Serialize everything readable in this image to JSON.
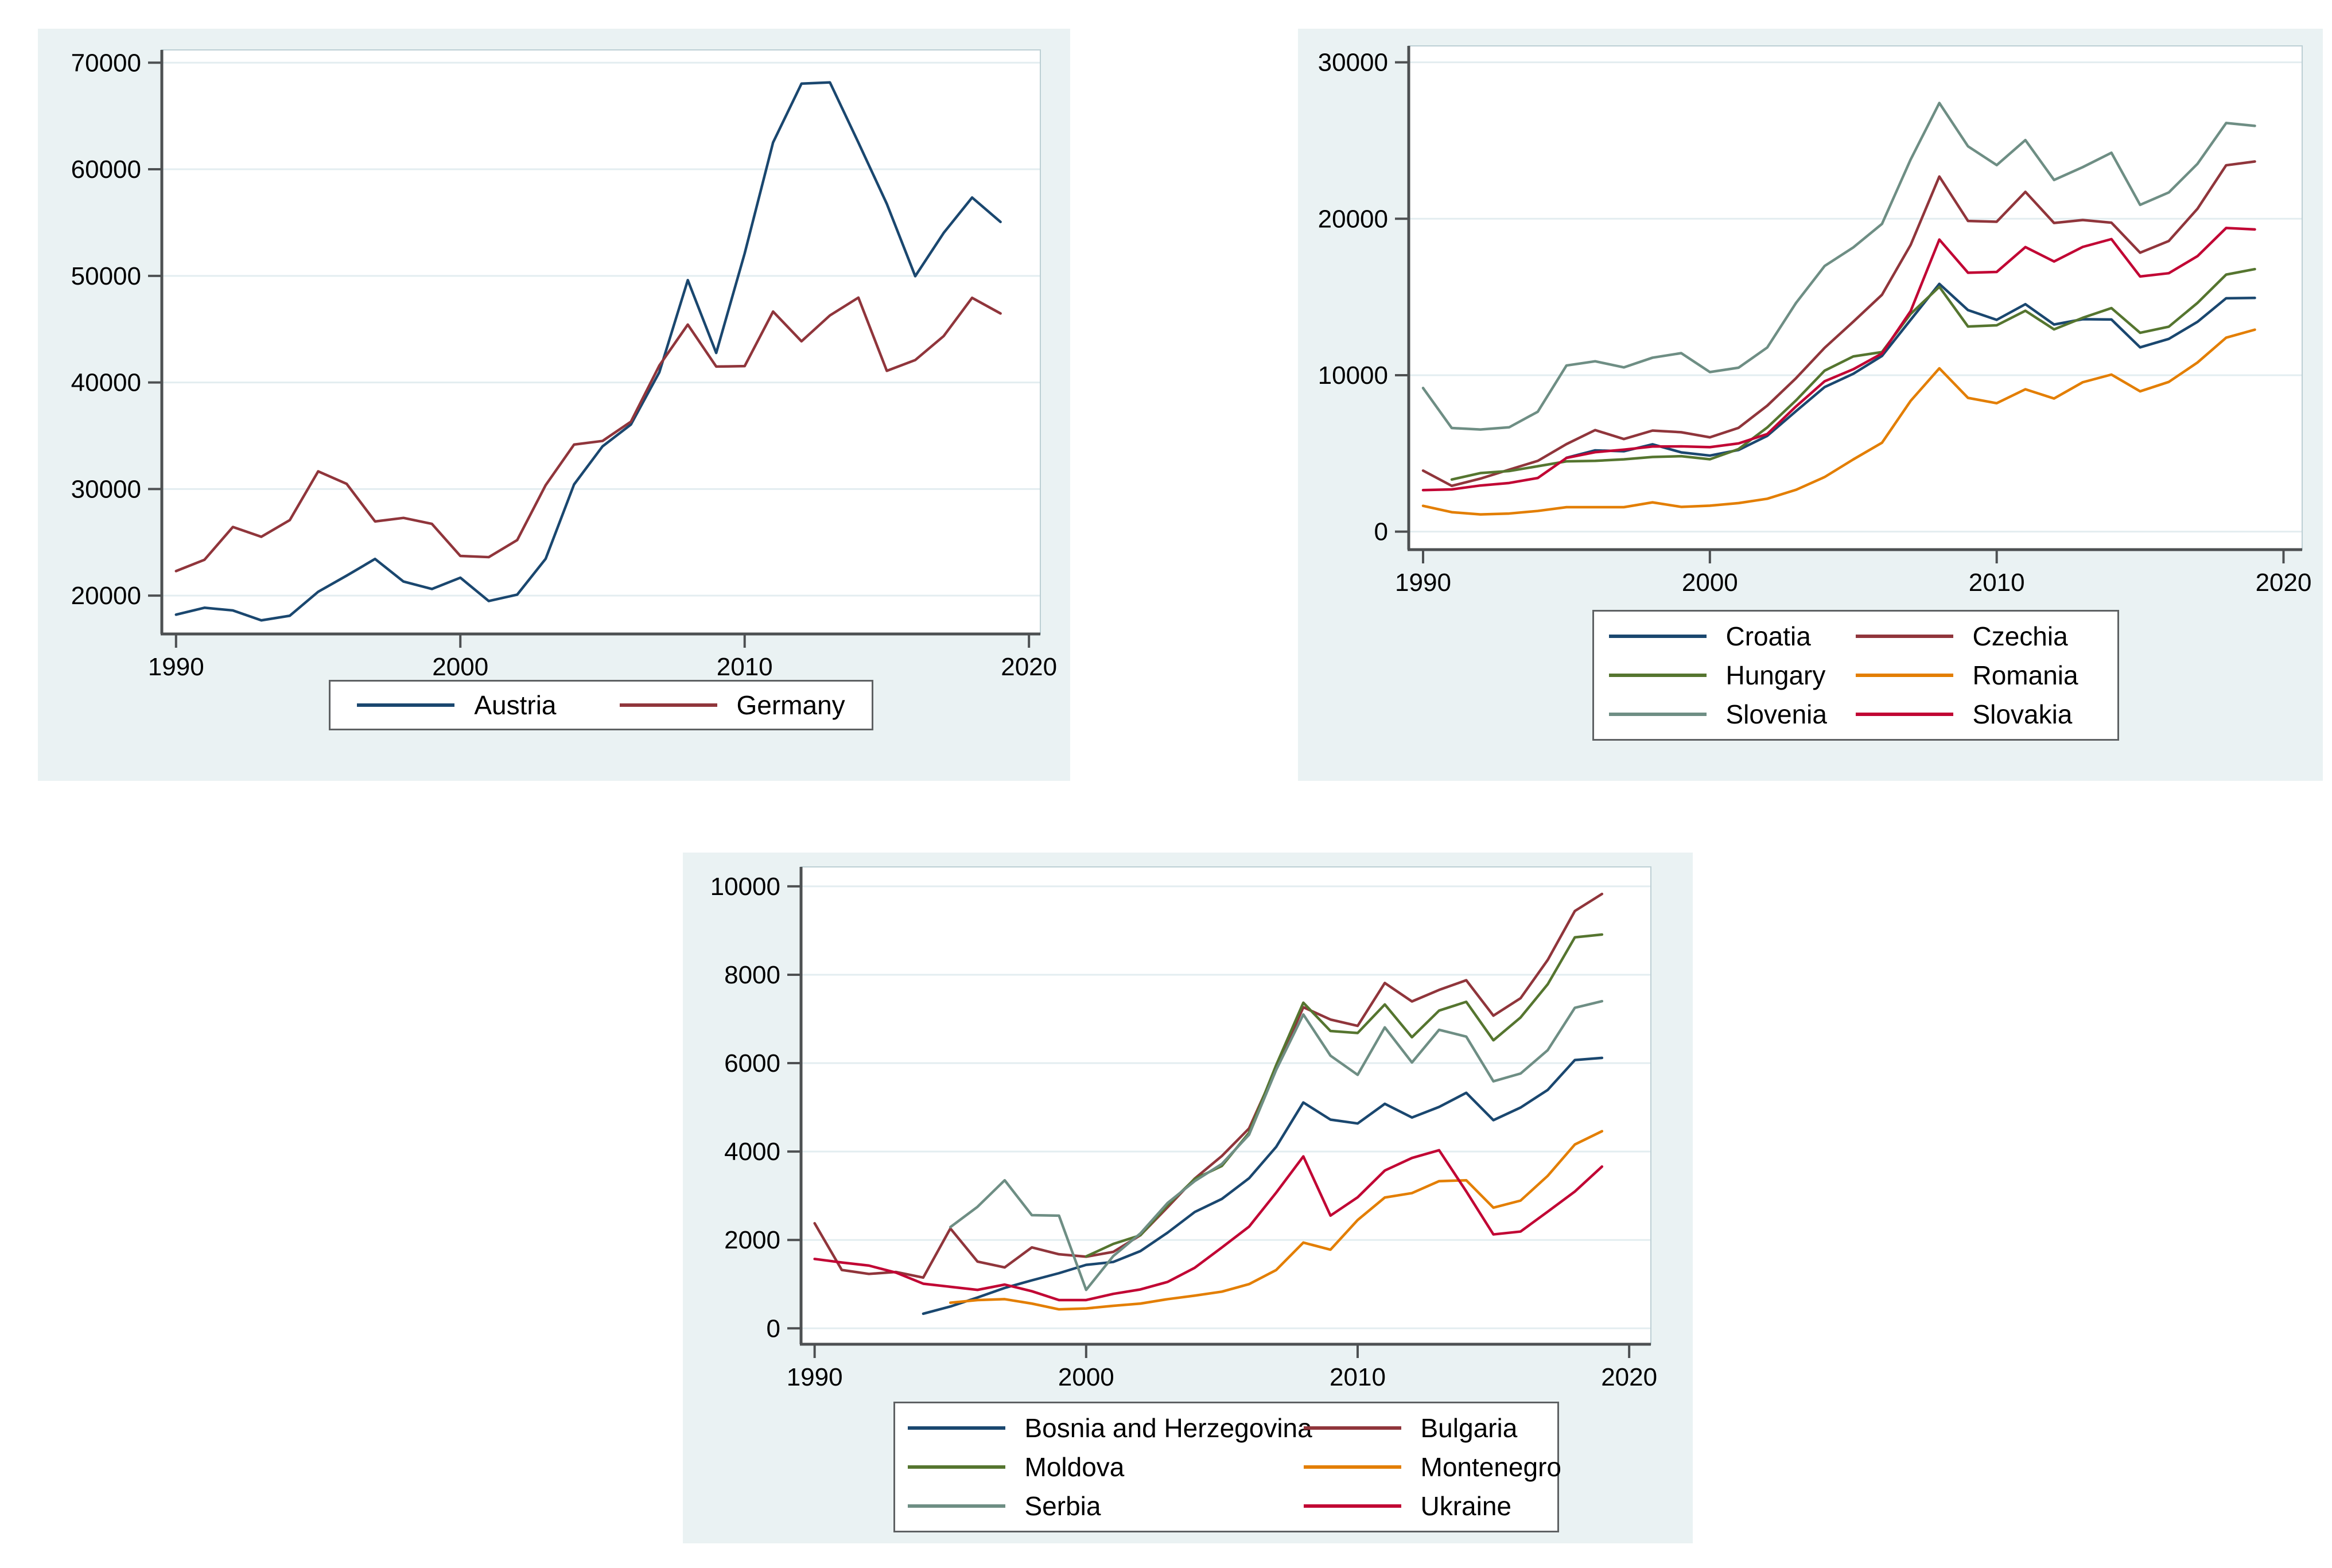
{
  "palette": {
    "navy": "#1a476f",
    "maroon": "#90353b",
    "forest_green": "#55752f",
    "dark_orange": "#e37e00",
    "teal_gray": "#6e8e84",
    "cranberry": "#c10534",
    "panel_background": "#eaf2f3",
    "plot_background": "#ffffff",
    "gridline": "#e3edf0",
    "plot_border": "#bccfd4",
    "axis": "#4d5052",
    "text": "#000000"
  },
  "chart_data": [
    {
      "type": "line",
      "title": "",
      "xlabel": "",
      "ylabel": "",
      "grid": "horizontal",
      "legend_position": "bottom",
      "x_ticks": [
        1990,
        2000,
        2010,
        2020
      ],
      "y_ticks": [
        20000,
        30000,
        40000,
        50000,
        60000,
        70000
      ],
      "xlim": [
        1989.5,
        2020.4
      ],
      "ylim": [
        16400,
        71200
      ],
      "series": [
        {
          "name": "Austria",
          "color": "#1a476f",
          "start_year": 1990,
          "values": [
            18211,
            18860,
            18610,
            17680,
            18110,
            20360,
            21870,
            23440,
            21320,
            20620,
            21680,
            19490,
            20090,
            23450,
            30430,
            34000,
            36050,
            40960,
            49600,
            42770,
            52100,
            62520,
            68040,
            68150,
            62510,
            56760,
            49970,
            54030,
            57350,
            55060
          ]
        },
        {
          "name": "Germany",
          "color": "#90353b",
          "start_year": 1990,
          "values": [
            22300,
            23360,
            26440,
            25520,
            27080,
            31660,
            30490,
            26960,
            27290,
            26730,
            23720,
            23610,
            25210,
            30360,
            34170,
            34510,
            36320,
            41590,
            45430,
            41490,
            41530,
            46650,
            43860,
            46290,
            47960,
            41090,
            42100,
            44350,
            47940,
            46470
          ]
        }
      ]
    },
    {
      "type": "line",
      "title": "",
      "xlabel": "",
      "ylabel": "",
      "grid": "horizontal",
      "legend_position": "bottom",
      "x_ticks": [
        1990,
        2000,
        2010,
        2020
      ],
      "y_ticks": [
        0,
        10000,
        20000,
        30000
      ],
      "xlim": [
        1989.5,
        2020.65
      ],
      "ylim": [
        -1150,
        31050
      ],
      "series": [
        {
          "name": "Croatia",
          "color": "#1a476f",
          "start_year": 1995,
          "values": [
            4722,
            5195,
            5139,
            5583,
            5068,
            4862,
            5220,
            6122,
            7694,
            9241,
            10090,
            11230,
            13540,
            15840,
            14160,
            13540,
            14540,
            13240,
            13580,
            13560,
            11780,
            12320,
            13410,
            14920,
            14940
          ]
        },
        {
          "name": "Czechia",
          "color": "#90353b",
          "start_year": 1990,
          "values": [
            3902,
            2928,
            3389,
            3962,
            4525,
            5596,
            6491,
            5921,
            6459,
            6355,
            6029,
            6636,
            8053,
            9804,
            11750,
            13420,
            15140,
            18330,
            22700,
            19860,
            19810,
            21720,
            19730,
            19920,
            19750,
            17830,
            18580,
            20640,
            23420,
            23660
          ]
        },
        {
          "name": "Hungary",
          "color": "#55752f",
          "start_year": 1991,
          "values": [
            3333,
            3745,
            3873,
            4181,
            4494,
            4525,
            4622,
            4774,
            4824,
            4625,
            5278,
            6658,
            8385,
            10290,
            11200,
            11480,
            13920,
            15650,
            13110,
            13190,
            14120,
            12930,
            13670,
            14290,
            12710,
            13100,
            14620,
            16430,
            16780
          ]
        },
        {
          "name": "Romania",
          "color": "#e37e00",
          "start_year": 1990,
          "values": [
            1650,
            1244,
            1102,
            1158,
            1323,
            1564,
            1563,
            1565,
            1872,
            1584,
            1660,
            1825,
            2102,
            2672,
            3490,
            4617,
            5681,
            8360,
            10440,
            8550,
            8210,
            9100,
            8510,
            9550,
            10040,
            8970,
            9570,
            10810,
            12400,
            12910
          ]
        },
        {
          "name": "Slovenia",
          "color": "#6e8e84",
          "start_year": 1990,
          "values": [
            9182,
            6624,
            6529,
            6669,
            7666,
            10620,
            10890,
            10500,
            11120,
            11410,
            10200,
            10480,
            11770,
            14610,
            16980,
            18170,
            19670,
            23790,
            27400,
            24630,
            23430,
            25030,
            22480,
            23300,
            24220,
            20890,
            21680,
            23510,
            26120,
            25940
          ]
        },
        {
          "name": "Slovakia",
          "color": "#c10534",
          "start_year": 1990,
          "values": [
            2653,
            2700,
            2950,
            3110,
            3430,
            4710,
            5080,
            5240,
            5440,
            5450,
            5400,
            5640,
            6240,
            8000,
            9610,
            10380,
            11390,
            14100,
            18670,
            16550,
            16600,
            18190,
            17270,
            18200,
            18700,
            16310,
            16520,
            17610,
            19410,
            19320
          ]
        }
      ]
    },
    {
      "type": "line",
      "title": "",
      "xlabel": "",
      "ylabel": "",
      "grid": "horizontal",
      "legend_position": "bottom",
      "x_ticks": [
        1990,
        2000,
        2010,
        2020
      ],
      "y_ticks": [
        0,
        2000,
        4000,
        6000,
        8000,
        10000
      ],
      "xlim": [
        1989.5,
        2020.8
      ],
      "ylim": [
        -360,
        10440
      ],
      "series": [
        {
          "name": "Bosnia and Herzegovina",
          "color": "#1a476f",
          "start_year": 1994,
          "values": [
            331,
            494,
            698,
            914,
            1086,
            1248,
            1436,
            1502,
            1748,
            2165,
            2632,
            2928,
            3395,
            4106,
            5110,
            4722,
            4635,
            5080,
            4770,
            5009,
            5329,
            4710,
            4995,
            5394,
            6070,
            6119
          ]
        },
        {
          "name": "Bulgaria",
          "color": "#90353b",
          "start_year": 1990,
          "values": [
            2377,
            1321,
            1231,
            1275,
            1148,
            2260,
            1510,
            1378,
            1831,
            1676,
            1621,
            1730,
            2107,
            2740,
            3389,
            3900,
            4523,
            5885,
            7265,
            6987,
            6843,
            7814,
            7396,
            7657,
            7876,
            7075,
            7469,
            8334,
            9442,
            9828
          ]
        },
        {
          "name": "Moldova",
          "color": "#55752f",
          "start_year": 2000,
          "values": [
            1627,
            1910,
            2106,
            2789,
            3380,
            3674,
            4425,
            5957,
            7368,
            6727,
            6682,
            7328,
            6586,
            7189,
            7388,
            6517,
            7033,
            7784,
            8846,
            8910
          ]
        },
        {
          "name": "Montenegro",
          "color": "#e37e00",
          "start_year": 1995,
          "values": [
            580,
            640,
            660,
            560,
            430,
            450,
            510,
            560,
            660,
            740,
            830,
            1000,
            1320,
            1940,
            1780,
            2450,
            2960,
            3060,
            3330,
            3350,
            2730,
            2890,
            3450,
            4160,
            4460
          ]
        },
        {
          "name": "Serbia",
          "color": "#6e8e84",
          "start_year": 1995,
          "values": [
            2290,
            2750,
            3350,
            2560,
            2550,
            870,
            1636,
            2149,
            2836,
            3331,
            3720,
            4380,
            5848,
            7101,
            6169,
            5735,
            6809,
            6015,
            6755,
            6600,
            5589,
            5765,
            6293,
            7252,
            7402
          ]
        },
        {
          "name": "Ukraine",
          "color": "#c10534",
          "start_year": 1990,
          "values": [
            1570,
            1490,
            1420,
            1260,
            1010,
            940,
            870,
            990,
            840,
            640,
            640,
            780,
            880,
            1050,
            1370,
            1830,
            2300,
            3070,
            3890,
            2550,
            2965,
            3570,
            3855,
            4030,
            3100,
            2125,
            2190,
            2640,
            3095,
            3660
          ]
        }
      ]
    }
  ]
}
